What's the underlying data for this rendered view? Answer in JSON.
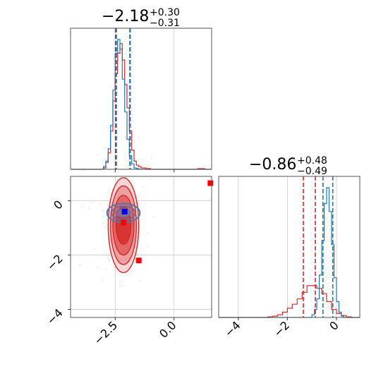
{
  "chart_data": {
    "type": "corner",
    "colors": {
      "series_a": "#d62728",
      "series_b": "#1f77b4",
      "grid": "#cccccc",
      "axes": "#555555"
    },
    "series": [
      {
        "color": "#d62728"
      },
      {
        "color": "#1f77b4"
      }
    ],
    "panels": [
      {
        "type": "histogram",
        "title": {
          "median": "−2.18",
          "upper": "+0.30",
          "lower": "−0.31"
        },
        "xlim": [
          -4.4,
          1.6
        ],
        "xticks": [
          -2.5,
          0.0
        ],
        "grid": true,
        "red_hist": {
          "edges": [
            -4.4,
            -4.2,
            -4.0,
            -3.8,
            -3.6,
            -3.4,
            -3.2,
            -3.0,
            -2.9,
            -2.8,
            -2.7,
            -2.6,
            -2.5,
            -2.4,
            -2.3,
            -2.2,
            -2.1,
            -2.0,
            -1.9,
            -1.8,
            -1.7,
            -1.6,
            -1.5,
            -1.4,
            -1.3,
            -1.2,
            -1.0,
            0.0,
            1.0,
            1.3,
            1.6
          ],
          "counts": [
            0,
            0,
            0,
            0,
            0,
            0,
            0,
            0.01,
            0.05,
            0.12,
            0.28,
            0.5,
            0.7,
            0.85,
            0.92,
            0.8,
            0.62,
            0.45,
            0.28,
            0.14,
            0.06,
            0.03,
            0.02,
            0.01,
            0.01,
            0.005,
            0,
            0,
            0.005,
            0
          ]
        },
        "blue_hist": {
          "edges": [
            -4.4,
            -3.0,
            -2.9,
            -2.8,
            -2.7,
            -2.6,
            -2.5,
            -2.4,
            -2.3,
            -2.2,
            -2.1,
            -2.0,
            -1.9,
            -1.8,
            -1.7,
            -1.6,
            -1.5,
            -1.4,
            1.6
          ],
          "counts": [
            0,
            0.02,
            0.06,
            0.15,
            0.32,
            0.58,
            0.85,
            0.95,
            0.88,
            0.66,
            0.42,
            0.22,
            0.1,
            0.04,
            0.01,
            0.005,
            0,
            0
          ]
        },
        "red_quantiles": [
          -2.49,
          -2.18,
          -1.88
        ],
        "blue_quantiles": [
          -2.45,
          -2.16,
          -1.86
        ]
      },
      {
        "type": "2d",
        "xlim": [
          -4.4,
          1.6
        ],
        "ylim": [
          -4.3,
          0.9
        ],
        "xticks": [
          -2.5,
          0.0
        ],
        "yticks": [
          0,
          -2,
          -4
        ],
        "grid": true,
        "red_contours": [
          {
            "center": [
              -2.15,
              -0.9
            ],
            "rx": 0.65,
            "ry": 1.75
          },
          {
            "center": [
              -2.15,
              -0.9
            ],
            "rx": 0.55,
            "ry": 1.45
          },
          {
            "center": [
              -2.15,
              -0.9
            ],
            "rx": 0.45,
            "ry": 1.1
          },
          {
            "center": [
              -2.15,
              -0.9
            ],
            "rx": 0.32,
            "ry": 0.7
          }
        ],
        "blue_contours": [
          {
            "center": [
              -2.15,
              -0.45
            ],
            "rx": 0.7,
            "ry": 0.35
          },
          {
            "center": [
              -2.15,
              -0.45
            ],
            "rx": 0.5,
            "ry": 0.25
          },
          {
            "center": [
              -2.15,
              -0.45
            ],
            "rx": 0.3,
            "ry": 0.15
          }
        ],
        "blue_marker": [
          -2.1,
          -0.4
        ],
        "red_markers": [
          [
            -2.15,
            -0.8
          ],
          [
            -1.5,
            -2.2
          ],
          [
            1.55,
            0.65
          ]
        ]
      },
      {
        "type": "histogram",
        "title": {
          "median": "−0.86",
          "upper": "+0.48",
          "lower": "−0.49"
        },
        "xlim": [
          -4.8,
          0.95
        ],
        "xticks": [
          -4,
          -2,
          0
        ],
        "grid": true,
        "red_hist": {
          "edges": [
            -4.8,
            -2.8,
            -2.6,
            -2.4,
            -2.2,
            -2.0,
            -1.8,
            -1.6,
            -1.4,
            -1.2,
            -1.0,
            -0.8,
            -0.6,
            -0.4,
            -0.2,
            0.0,
            0.2,
            0.4,
            0.6,
            0.8,
            0.95
          ],
          "counts": [
            0,
            0.005,
            0.01,
            0.02,
            0.04,
            0.07,
            0.1,
            0.14,
            0.19,
            0.24,
            0.24,
            0.22,
            0.18,
            0.12,
            0.06,
            0.03,
            0.015,
            0.005,
            0,
            0
          ]
        },
        "blue_hist": {
          "edges": [
            -4.8,
            -1.0,
            -0.9,
            -0.8,
            -0.7,
            -0.6,
            -0.5,
            -0.4,
            -0.3,
            -0.2,
            -0.1,
            0.0,
            0.1,
            0.2,
            0.3,
            0.95
          ],
          "counts": [
            0,
            0.02,
            0.06,
            0.14,
            0.32,
            0.58,
            0.86,
            0.98,
            0.8,
            0.55,
            0.3,
            0.12,
            0.04,
            0.01,
            0
          ]
        },
        "red_quantiles": [
          -1.35,
          -0.86,
          -0.38
        ],
        "blue_quantiles": [
          -0.55,
          -0.32,
          -0.15
        ]
      }
    ]
  }
}
